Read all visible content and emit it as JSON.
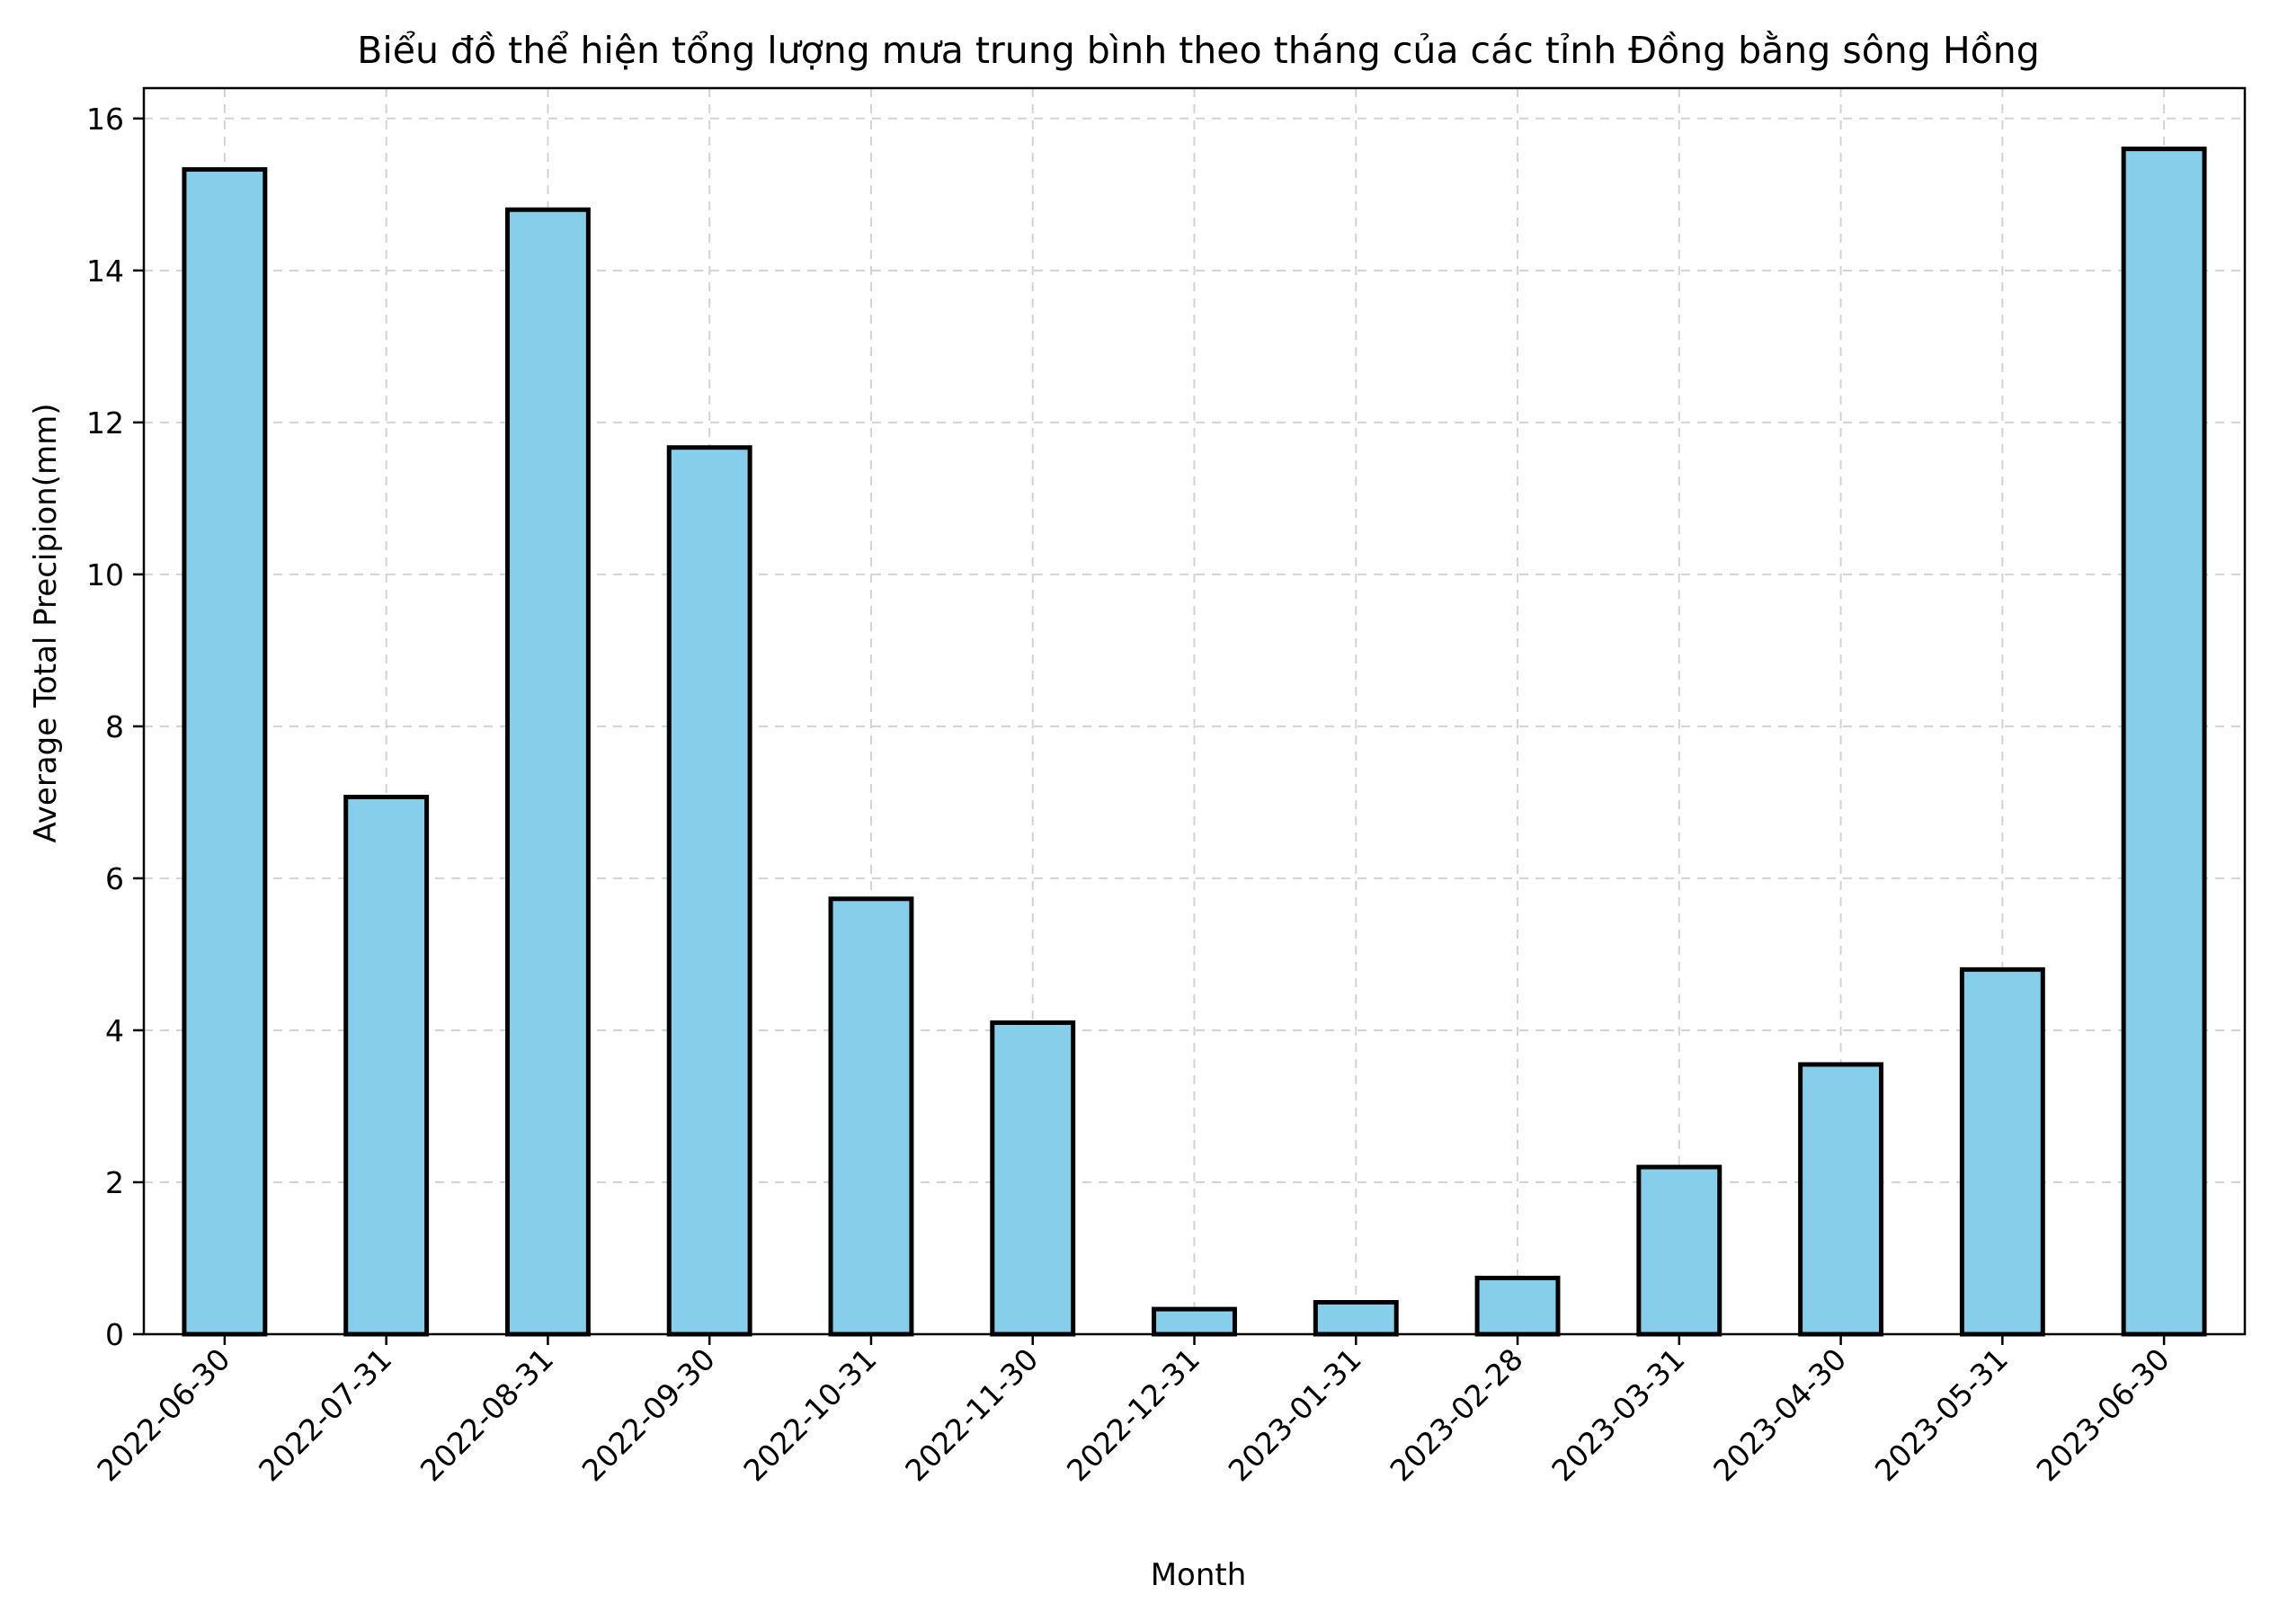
{
  "chart_data": {
    "type": "bar",
    "title": "Biểu đồ thể hiện tổng lượng mưa trung bình theo tháng của các tỉnh Đồng bằng sông Hồng",
    "xlabel": "Month",
    "ylabel": "Average Total Precipion(mm)",
    "categories": [
      "2022-06-30",
      "2022-07-31",
      "2022-08-31",
      "2022-09-30",
      "2022-10-31",
      "2022-11-30",
      "2022-12-31",
      "2023-01-31",
      "2023-02-28",
      "2023-03-31",
      "2023-04-30",
      "2023-05-31",
      "2023-06-30"
    ],
    "values": [
      15.33,
      7.07,
      14.8,
      11.67,
      5.73,
      4.1,
      0.33,
      0.42,
      0.74,
      2.2,
      3.55,
      4.8,
      15.6
    ],
    "ylim": [
      0,
      16.4
    ],
    "yticks": [
      0,
      2,
      4,
      6,
      8,
      10,
      12,
      14,
      16
    ],
    "grid": true,
    "colors": {
      "bar_fill": "#87CEEB",
      "bar_edge": "#000000"
    }
  }
}
